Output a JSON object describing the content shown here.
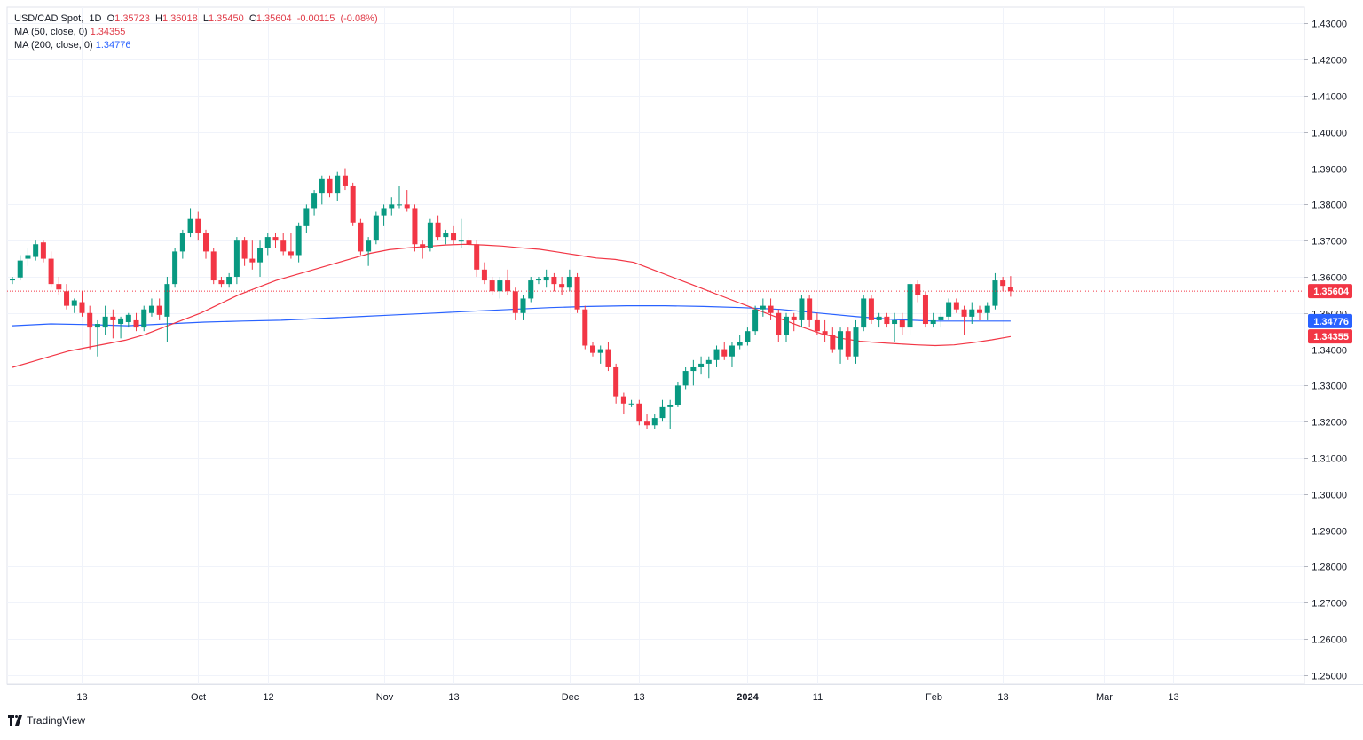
{
  "chart_data": {
    "type": "candlestick",
    "symbol": "USD/CAD Spot",
    "interval": "1D",
    "ohlc": {
      "o": "1.35723",
      "h": "1.36018",
      "l": "1.35450",
      "c": "1.35604",
      "chg": "-0.00115",
      "chg_pct": "(-0.08%)"
    },
    "ma50": {
      "label": "MA (50, close, 0)",
      "value": "1.34355",
      "color": "#f23645"
    },
    "ma200": {
      "label": "MA (200, close, 0)",
      "value": "1.34776",
      "color": "#2962ff"
    },
    "last_price": "1.35604",
    "ylim": [
      1.2475,
      1.4345
    ],
    "y_ticks": [
      "1.43000",
      "1.42000",
      "1.41000",
      "1.40000",
      "1.39000",
      "1.38000",
      "1.37000",
      "1.36000",
      "1.35000",
      "1.34000",
      "1.33000",
      "1.32000",
      "1.31000",
      "1.30000",
      "1.29000",
      "1.28000",
      "1.27000",
      "1.26000",
      "1.25000"
    ],
    "x_ticks": [
      {
        "i": 9,
        "label": "13"
      },
      {
        "i": 24,
        "label": "Oct"
      },
      {
        "i": 33,
        "label": "12"
      },
      {
        "i": 48,
        "label": "Nov"
      },
      {
        "i": 57,
        "label": "13"
      },
      {
        "i": 72,
        "label": "Dec"
      },
      {
        "i": 81,
        "label": "13"
      },
      {
        "i": 95,
        "label": "2024",
        "bold": true
      },
      {
        "i": 104,
        "label": "11"
      },
      {
        "i": 119,
        "label": "Feb"
      },
      {
        "i": 128,
        "label": "13"
      },
      {
        "i": 141,
        "label": "Mar"
      },
      {
        "i": 150,
        "label": "13"
      }
    ],
    "candles": [
      [
        1.359,
        1.36,
        1.358,
        1.3595
      ],
      [
        1.3598,
        1.366,
        1.359,
        1.3645
      ],
      [
        1.365,
        1.368,
        1.363,
        1.366
      ],
      [
        1.3655,
        1.37,
        1.3645,
        1.369
      ],
      [
        1.3695,
        1.37,
        1.364,
        1.365
      ],
      [
        1.365,
        1.367,
        1.357,
        1.358
      ],
      [
        1.358,
        1.36,
        1.355,
        1.3565
      ],
      [
        1.356,
        1.358,
        1.351,
        1.352
      ],
      [
        1.352,
        1.354,
        1.35,
        1.3535
      ],
      [
        1.353,
        1.356,
        1.349,
        1.35
      ],
      [
        1.35,
        1.352,
        1.34,
        1.346
      ],
      [
        1.346,
        1.348,
        1.338,
        1.347
      ],
      [
        1.346,
        1.352,
        1.344,
        1.349
      ],
      [
        1.349,
        1.351,
        1.343,
        1.348
      ],
      [
        1.347,
        1.349,
        1.343,
        1.3485
      ],
      [
        1.3475,
        1.35,
        1.346,
        1.3495
      ],
      [
        1.348,
        1.35,
        1.345,
        1.346
      ],
      [
        1.346,
        1.352,
        1.345,
        1.351
      ],
      [
        1.35,
        1.354,
        1.349,
        1.352
      ],
      [
        1.352,
        1.354,
        1.348,
        1.3495
      ],
      [
        1.349,
        1.36,
        1.342,
        1.358
      ],
      [
        1.358,
        1.368,
        1.357,
        1.367
      ],
      [
        1.367,
        1.373,
        1.365,
        1.372
      ],
      [
        1.372,
        1.379,
        1.371,
        1.376
      ],
      [
        1.376,
        1.378,
        1.37,
        1.372
      ],
      [
        1.372,
        1.373,
        1.365,
        1.367
      ],
      [
        1.367,
        1.368,
        1.358,
        1.359
      ],
      [
        1.359,
        1.36,
        1.357,
        1.358
      ],
      [
        1.358,
        1.361,
        1.357,
        1.36
      ],
      [
        1.36,
        1.371,
        1.358,
        1.37
      ],
      [
        1.37,
        1.371,
        1.363,
        1.365
      ],
      [
        1.365,
        1.37,
        1.362,
        1.364
      ],
      [
        1.364,
        1.37,
        1.36,
        1.368
      ],
      [
        1.368,
        1.372,
        1.366,
        1.371
      ],
      [
        1.371,
        1.372,
        1.368,
        1.37
      ],
      [
        1.37,
        1.372,
        1.366,
        1.367
      ],
      [
        1.367,
        1.372,
        1.365,
        1.366
      ],
      [
        1.366,
        1.375,
        1.364,
        1.374
      ],
      [
        1.374,
        1.38,
        1.372,
        1.379
      ],
      [
        1.379,
        1.384,
        1.377,
        1.383
      ],
      [
        1.383,
        1.388,
        1.38,
        1.387
      ],
      [
        1.387,
        1.388,
        1.382,
        1.383
      ],
      [
        1.383,
        1.389,
        1.381,
        1.388
      ],
      [
        1.388,
        1.39,
        1.384,
        1.385
      ],
      [
        1.385,
        1.386,
        1.374,
        1.375
      ],
      [
        1.375,
        1.376,
        1.366,
        1.367
      ],
      [
        1.367,
        1.371,
        1.363,
        1.37
      ],
      [
        1.37,
        1.378,
        1.369,
        1.377
      ],
      [
        1.377,
        1.38,
        1.374,
        1.379
      ],
      [
        1.379,
        1.382,
        1.377,
        1.38
      ],
      [
        1.38,
        1.385,
        1.379,
        1.38
      ],
      [
        1.38,
        1.384,
        1.378,
        1.379
      ],
      [
        1.379,
        1.38,
        1.367,
        1.369
      ],
      [
        1.369,
        1.37,
        1.365,
        1.368
      ],
      [
        1.368,
        1.376,
        1.367,
        1.375
      ],
      [
        1.375,
        1.377,
        1.37,
        1.371
      ],
      [
        1.371,
        1.373,
        1.369,
        1.372
      ],
      [
        1.372,
        1.374,
        1.369,
        1.37
      ],
      [
        1.37,
        1.376,
        1.368,
        1.37
      ],
      [
        1.37,
        1.371,
        1.368,
        1.369
      ],
      [
        1.369,
        1.37,
        1.36,
        1.362
      ],
      [
        1.362,
        1.364,
        1.358,
        1.359
      ],
      [
        1.359,
        1.36,
        1.355,
        1.356
      ],
      [
        1.356,
        1.36,
        1.354,
        1.359
      ],
      [
        1.359,
        1.362,
        1.355,
        1.356
      ],
      [
        1.356,
        1.357,
        1.348,
        1.35
      ],
      [
        1.35,
        1.355,
        1.348,
        1.354
      ],
      [
        1.354,
        1.36,
        1.353,
        1.359
      ],
      [
        1.359,
        1.36,
        1.358,
        1.3595
      ],
      [
        1.359,
        1.362,
        1.357,
        1.36
      ],
      [
        1.36,
        1.361,
        1.356,
        1.358
      ],
      [
        1.358,
        1.36,
        1.355,
        1.357
      ],
      [
        1.357,
        1.362,
        1.356,
        1.36
      ],
      [
        1.36,
        1.361,
        1.35,
        1.351
      ],
      [
        1.351,
        1.352,
        1.34,
        1.341
      ],
      [
        1.341,
        1.342,
        1.338,
        1.339
      ],
      [
        1.339,
        1.341,
        1.336,
        1.34
      ],
      [
        1.34,
        1.342,
        1.334,
        1.335
      ],
      [
        1.335,
        1.336,
        1.325,
        1.327
      ],
      [
        1.327,
        1.328,
        1.322,
        1.325
      ],
      [
        1.325,
        1.326,
        1.324,
        1.325
      ],
      [
        1.325,
        1.326,
        1.319,
        1.32
      ],
      [
        1.32,
        1.322,
        1.318,
        1.319
      ],
      [
        1.319,
        1.322,
        1.318,
        1.321
      ],
      [
        1.321,
        1.326,
        1.32,
        1.324
      ],
      [
        1.324,
        1.326,
        1.318,
        1.3245
      ],
      [
        1.3245,
        1.331,
        1.324,
        1.33
      ],
      [
        1.33,
        1.335,
        1.329,
        1.334
      ],
      [
        1.334,
        1.337,
        1.33,
        1.335
      ],
      [
        1.335,
        1.338,
        1.333,
        1.336
      ],
      [
        1.336,
        1.338,
        1.332,
        1.337
      ],
      [
        1.337,
        1.341,
        1.335,
        1.34
      ],
      [
        1.34,
        1.342,
        1.337,
        1.338
      ],
      [
        1.338,
        1.342,
        1.335,
        1.341
      ],
      [
        1.341,
        1.344,
        1.34,
        1.342
      ],
      [
        1.342,
        1.346,
        1.341,
        1.345
      ],
      [
        1.345,
        1.352,
        1.344,
        1.351
      ],
      [
        1.351,
        1.354,
        1.349,
        1.352
      ],
      [
        1.352,
        1.354,
        1.348,
        1.35
      ],
      [
        1.35,
        1.351,
        1.342,
        1.344
      ],
      [
        1.344,
        1.35,
        1.342,
        1.349
      ],
      [
        1.349,
        1.35,
        1.345,
        1.348
      ],
      [
        1.348,
        1.355,
        1.346,
        1.354
      ],
      [
        1.354,
        1.355,
        1.346,
        1.348
      ],
      [
        1.348,
        1.35,
        1.344,
        1.345
      ],
      [
        1.345,
        1.348,
        1.342,
        1.344
      ],
      [
        1.344,
        1.346,
        1.339,
        1.34
      ],
      [
        1.34,
        1.346,
        1.336,
        1.345
      ],
      [
        1.345,
        1.346,
        1.337,
        1.338
      ],
      [
        1.338,
        1.348,
        1.336,
        1.346
      ],
      [
        1.346,
        1.355,
        1.345,
        1.354
      ],
      [
        1.354,
        1.355,
        1.347,
        1.348
      ],
      [
        1.348,
        1.35,
        1.346,
        1.349
      ],
      [
        1.349,
        1.35,
        1.346,
        1.347
      ],
      [
        1.347,
        1.35,
        1.342,
        1.348
      ],
      [
        1.348,
        1.35,
        1.344,
        1.346
      ],
      [
        1.346,
        1.359,
        1.344,
        1.358
      ],
      [
        1.358,
        1.359,
        1.353,
        1.355
      ],
      [
        1.355,
        1.356,
        1.346,
        1.347
      ],
      [
        1.347,
        1.35,
        1.346,
        1.348
      ],
      [
        1.348,
        1.35,
        1.346,
        1.349
      ],
      [
        1.349,
        1.354,
        1.348,
        1.353
      ],
      [
        1.353,
        1.354,
        1.35,
        1.351
      ],
      [
        1.351,
        1.352,
        1.344,
        1.349
      ],
      [
        1.349,
        1.353,
        1.347,
        1.351
      ],
      [
        1.351,
        1.352,
        1.348,
        1.35
      ],
      [
        1.35,
        1.353,
        1.348,
        1.352
      ],
      [
        1.352,
        1.361,
        1.351,
        1.359
      ],
      [
        1.359,
        1.36,
        1.356,
        1.3575
      ],
      [
        1.3572,
        1.3602,
        1.3545,
        1.356
      ]
    ],
    "ma200_series": [
      1.3465,
      1.347,
      1.3468,
      1.3465,
      1.347,
      1.3475,
      1.3478,
      1.348,
      1.3485,
      1.349,
      1.3495,
      1.35,
      1.3505,
      1.351,
      1.3515,
      1.3518,
      1.352,
      1.352,
      1.3518,
      1.3515,
      1.351,
      1.35,
      1.349,
      1.3482,
      1.3478,
      1.3478,
      1.3478
    ],
    "ma200_start": 0,
    "ma200_step": 5.75,
    "ma50_series": [
      1.335,
      1.3365,
      1.338,
      1.3395,
      1.3405,
      1.3415,
      1.3425,
      1.344,
      1.346,
      1.348,
      1.35,
      1.3525,
      1.355,
      1.357,
      1.359,
      1.3605,
      1.362,
      1.3635,
      1.365,
      1.3665,
      1.3675,
      1.368,
      1.3684,
      1.3688,
      1.369,
      1.3688,
      1.3685,
      1.368,
      1.3676,
      1.3668,
      1.366,
      1.3652,
      1.3648,
      1.364,
      1.362,
      1.36,
      1.358,
      1.356,
      1.354,
      1.352,
      1.35,
      1.348,
      1.346,
      1.3442,
      1.343,
      1.3422,
      1.3418,
      1.3415,
      1.3412,
      1.341,
      1.3412,
      1.3418,
      1.3426,
      1.3435
    ],
    "ma50_start": 0,
    "ma50_step": 2.65
  },
  "brand": {
    "name": "TradingView"
  }
}
